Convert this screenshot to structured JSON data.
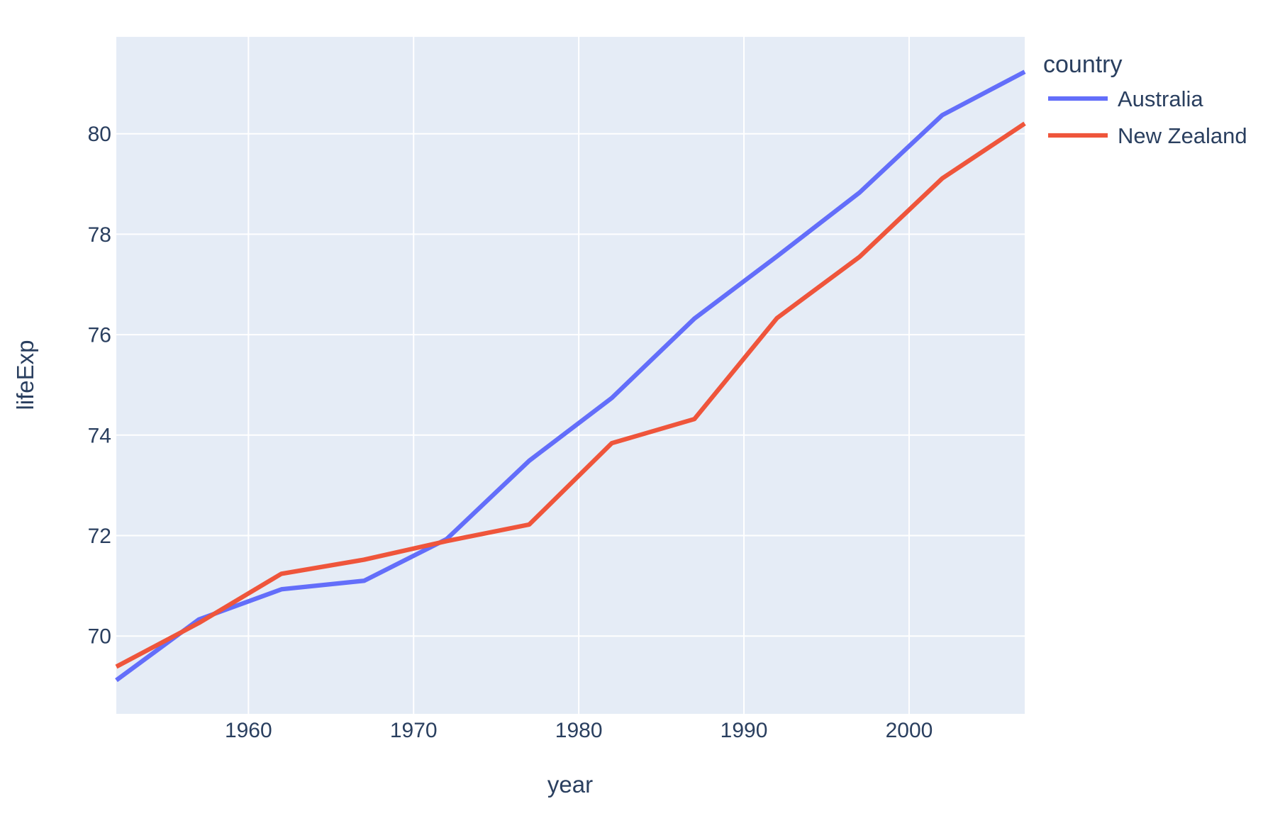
{
  "chart_data": {
    "type": "line",
    "title": "",
    "xlabel": "year",
    "ylabel": "lifeExp",
    "legend_title": "country",
    "legend_position": "top-right-outside",
    "grid": true,
    "plot_bg_color": "#E5ECF6",
    "grid_color": "#FFFFFF",
    "text_color": "#2A3F5F",
    "x": [
      1952,
      1957,
      1962,
      1967,
      1972,
      1977,
      1982,
      1987,
      1992,
      1997,
      2002,
      2007
    ],
    "series": [
      {
        "name": "Australia",
        "color": "#636EFA",
        "values": [
          69.12,
          70.33,
          70.93,
          71.1,
          71.93,
          73.49,
          74.74,
          76.32,
          77.56,
          78.83,
          80.37,
          81.235
        ]
      },
      {
        "name": "New Zealand",
        "color": "#EF553B",
        "values": [
          69.39,
          70.26,
          71.24,
          71.52,
          71.89,
          72.22,
          73.84,
          74.32,
          76.33,
          77.55,
          79.11,
          80.204
        ]
      }
    ],
    "x_ticks": [
      1960,
      1970,
      1980,
      1990,
      2000
    ],
    "y_ticks": [
      70,
      72,
      74,
      76,
      78,
      80
    ],
    "xlim": [
      1952,
      2007
    ],
    "ylim": [
      68.45,
      81.93
    ]
  }
}
